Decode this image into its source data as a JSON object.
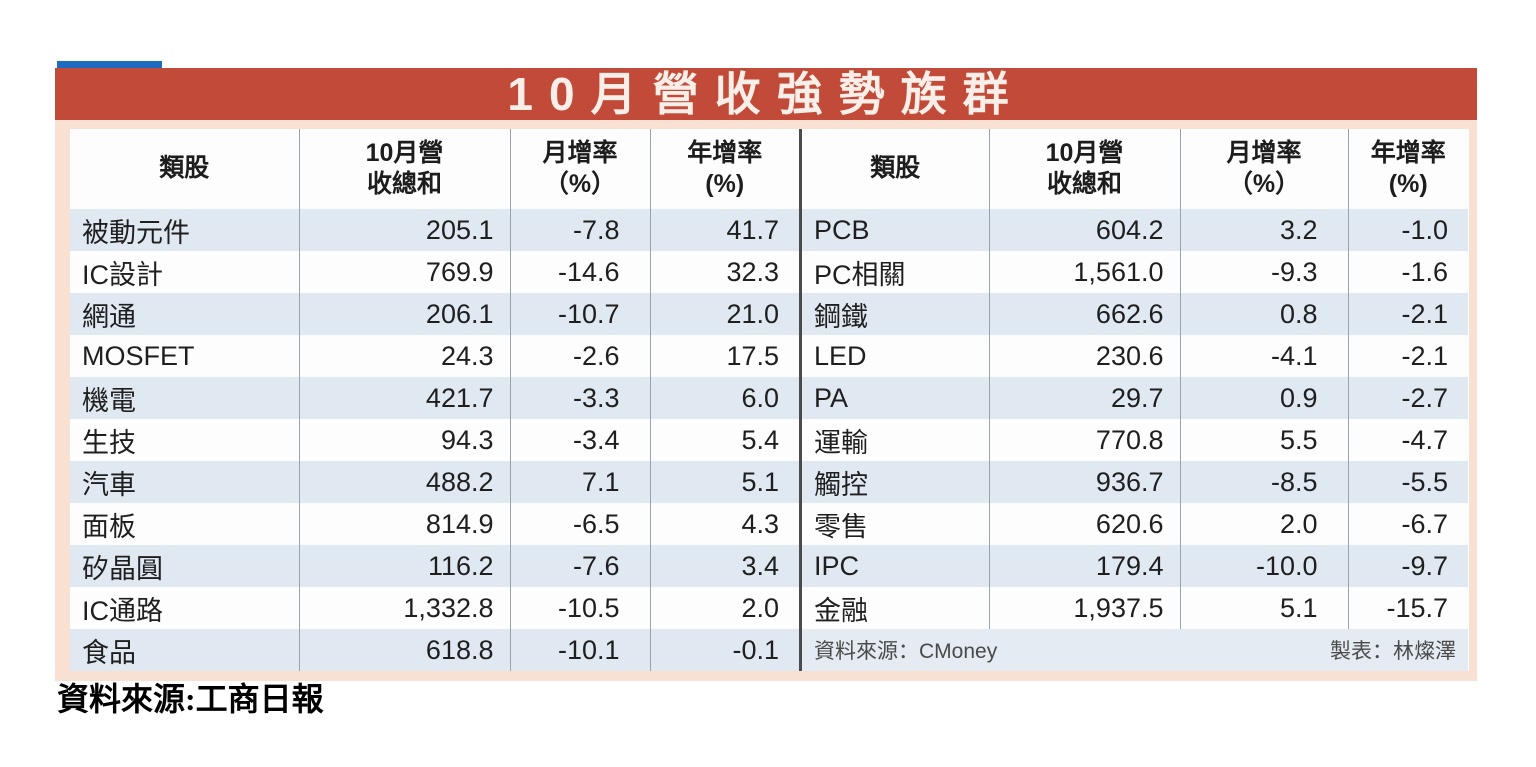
{
  "infographic": {
    "title": "10月營收強勢族群",
    "title_bg_color": "#c14a38",
    "frame_color": "#f8e0d3",
    "stripe_color": "#e0e8f2",
    "accent_blue_bar_color": "#1d6cc0",
    "left_table": {
      "headers": [
        "類股",
        "10月營\n收總和",
        "月增率\n（%）",
        "年增率\n(%)"
      ],
      "rows": [
        [
          "被動元件",
          "205.1",
          "-7.8",
          "41.7"
        ],
        [
          "IC設計",
          "769.9",
          "-14.6",
          "32.3"
        ],
        [
          "網通",
          "206.1",
          "-10.7",
          "21.0"
        ],
        [
          "MOSFET",
          "24.3",
          "-2.6",
          "17.5"
        ],
        [
          "機電",
          "421.7",
          "-3.3",
          "6.0"
        ],
        [
          "生技",
          "94.3",
          "-3.4",
          "5.4"
        ],
        [
          "汽車",
          "488.2",
          "7.1",
          "5.1"
        ],
        [
          "面板",
          "814.9",
          "-6.5",
          "4.3"
        ],
        [
          "矽晶圓",
          "116.2",
          "-7.6",
          "3.4"
        ],
        [
          "IC通路",
          "1,332.8",
          "-10.5",
          "2.0"
        ],
        [
          "食品",
          "618.8",
          "-10.1",
          "-0.1"
        ]
      ]
    },
    "right_table": {
      "headers": [
        "類股",
        "10月營\n收總和",
        "月增率\n（%）",
        "年增率\n(%)"
      ],
      "rows": [
        [
          "PCB",
          "604.2",
          "3.2",
          "-1.0"
        ],
        [
          "PC相關",
          "1,561.0",
          "-9.3",
          "-1.6"
        ],
        [
          "鋼鐵",
          "662.6",
          "0.8",
          "-2.1"
        ],
        [
          "LED",
          "230.6",
          "-4.1",
          "-2.1"
        ],
        [
          "PA",
          "29.7",
          "0.9",
          "-2.7"
        ],
        [
          "運輸",
          "770.8",
          "5.5",
          "-4.7"
        ],
        [
          "觸控",
          "936.7",
          "-8.5",
          "-5.5"
        ],
        [
          "零售",
          "620.6",
          "2.0",
          "-6.7"
        ],
        [
          "IPC",
          "179.4",
          "-10.0",
          "-9.7"
        ],
        [
          "金融",
          "1,937.5",
          "5.1",
          "-15.7"
        ]
      ],
      "source_note": "資料來源：CMoney",
      "credit_note": "製表：林燦澤"
    }
  },
  "caption": {
    "text": "資料來源:工商日報"
  },
  "chart_data": {
    "type": "table",
    "title": "10月營收強勢族群",
    "columns": [
      "類股",
      "10月營收總和",
      "月增率(%)",
      "年增率(%)"
    ],
    "tables": [
      {
        "name": "left",
        "rows": [
          {
            "類股": "被動元件",
            "10月營收總和": 205.1,
            "月增率": -7.8,
            "年增率": 41.7
          },
          {
            "類股": "IC設計",
            "10月營收總和": 769.9,
            "月增率": -14.6,
            "年增率": 32.3
          },
          {
            "類股": "網通",
            "10月營收總和": 206.1,
            "月增率": -10.7,
            "年增率": 21.0
          },
          {
            "類股": "MOSFET",
            "10月營收總和": 24.3,
            "月增率": -2.6,
            "年增率": 17.5
          },
          {
            "類股": "機電",
            "10月營收總和": 421.7,
            "月增率": -3.3,
            "年增率": 6.0
          },
          {
            "類股": "生技",
            "10月營收總和": 94.3,
            "月增率": -3.4,
            "年增率": 5.4
          },
          {
            "類股": "汽車",
            "10月營收總和": 488.2,
            "月增率": 7.1,
            "年增率": 5.1
          },
          {
            "類股": "面板",
            "10月營收總和": 814.9,
            "月增率": -6.5,
            "年增率": 4.3
          },
          {
            "類股": "矽晶圓",
            "10月營收總和": 116.2,
            "月增率": -7.6,
            "年增率": 3.4
          },
          {
            "類股": "IC通路",
            "10月營收總和": 1332.8,
            "月增率": -10.5,
            "年增率": 2.0
          },
          {
            "類股": "食品",
            "10月營收總和": 618.8,
            "月增率": -10.1,
            "年增率": -0.1
          }
        ]
      },
      {
        "name": "right",
        "rows": [
          {
            "類股": "PCB",
            "10月營收總和": 604.2,
            "月增率": 3.2,
            "年增率": -1.0
          },
          {
            "類股": "PC相關",
            "10月營收總和": 1561.0,
            "月增率": -9.3,
            "年增率": -1.6
          },
          {
            "類股": "鋼鐵",
            "10月營收總和": 662.6,
            "月增率": 0.8,
            "年增率": -2.1
          },
          {
            "類股": "LED",
            "10月營收總和": 230.6,
            "月增率": -4.1,
            "年增率": -2.1
          },
          {
            "類股": "PA",
            "10月營收總和": 29.7,
            "月增率": 0.9,
            "年增率": -2.7
          },
          {
            "類股": "運輸",
            "10月營收總和": 770.8,
            "月增率": 5.5,
            "年增率": -4.7
          },
          {
            "類股": "觸控",
            "10月營收總和": 936.7,
            "月增率": -8.5,
            "年增率": -5.5
          },
          {
            "類股": "零售",
            "10月營收總和": 620.6,
            "月增率": 2.0,
            "年增率": -6.7
          },
          {
            "類股": "IPC",
            "10月營收總和": 179.4,
            "月增率": -10.0,
            "年增率": -9.7
          },
          {
            "類股": "金融",
            "10月營收總和": 1937.5,
            "月增率": 5.1,
            "年增率": -15.7
          }
        ]
      }
    ],
    "notes": [
      "資料來源：CMoney",
      "製表：林燦澤",
      "資料來源:工商日報"
    ]
  }
}
